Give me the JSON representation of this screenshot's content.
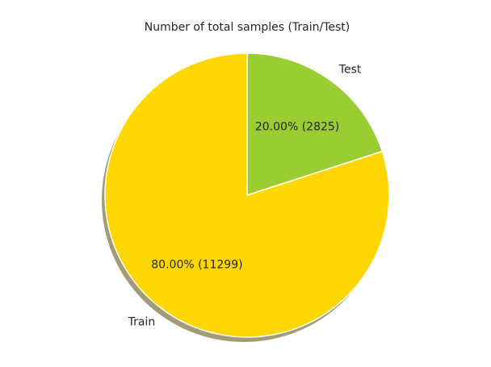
{
  "chart_data": {
    "type": "pie",
    "title": "Number of total samples (Train/Test)",
    "shadow": true,
    "start_angle_deg": 90,
    "direction": "clockwise",
    "slices": [
      {
        "name": "Test",
        "value": 2825,
        "percent": 20.0,
        "color": "#9acd32",
        "display": "20.00%  (2825)"
      },
      {
        "name": "Train",
        "value": 11299,
        "percent": 80.0,
        "color": "#ffd700",
        "display": "80.00%  (11299)"
      }
    ],
    "edge_color": "#ffffff",
    "shadow_color": "#a39a78"
  }
}
